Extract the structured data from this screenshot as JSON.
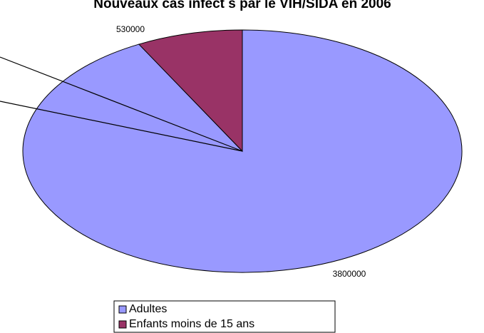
{
  "chart_data": {
    "type": "pie",
    "title": "Nouveaux cas infect  s par le VIH/SIDA en 2006",
    "categories": [
      "Adultes",
      "Enfants moins de 15 ans"
    ],
    "values": [
      3800000,
      530000
    ],
    "colors": [
      "#9999ff",
      "#993366"
    ],
    "legend": "bottom"
  }
}
